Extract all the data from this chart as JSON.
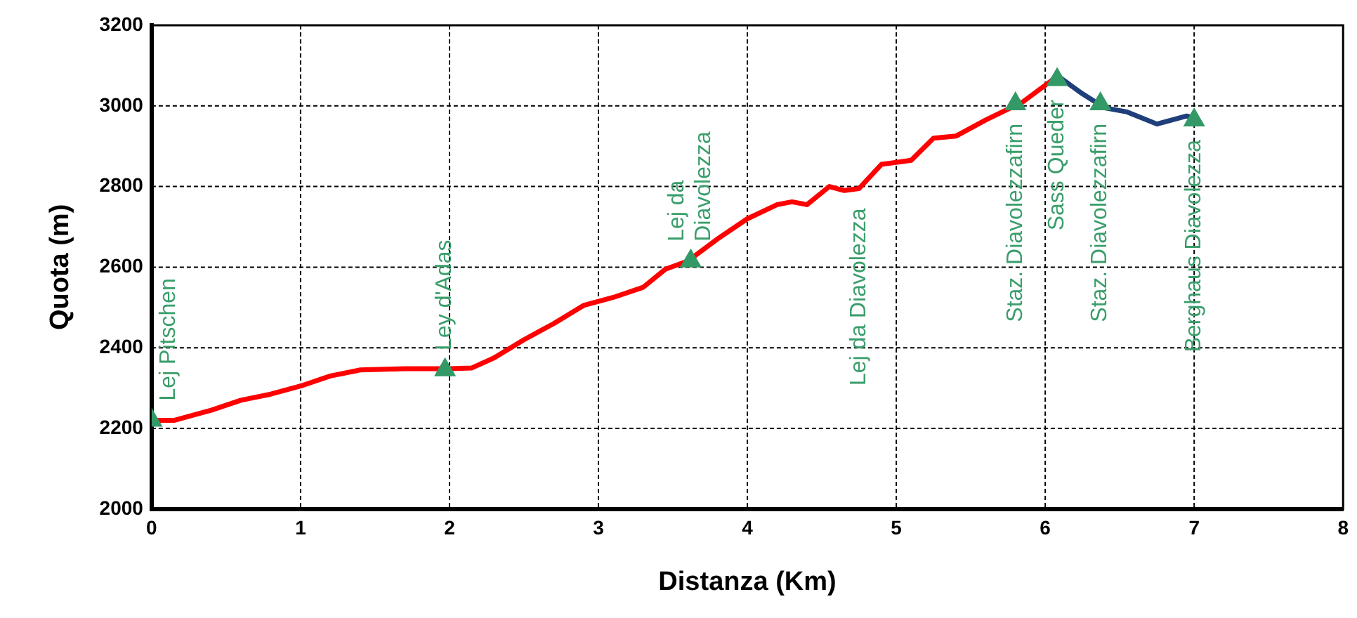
{
  "chart_data": {
    "type": "line",
    "xlabel": "Distanza (Km)",
    "ylabel": "Quota (m)",
    "xlim": [
      0,
      8
    ],
    "xticks": [
      0,
      1,
      2,
      3,
      4,
      5,
      6,
      7,
      8
    ],
    "ylim": [
      2000,
      3200
    ],
    "yticks": [
      2000,
      2200,
      2400,
      2600,
      2800,
      3000,
      3200
    ],
    "grid": true,
    "legend": false,
    "line_style": "solid",
    "marker": "none",
    "series": [
      {
        "color": "#ff0000",
        "x": [
          0,
          0.15,
          0.4,
          0.6,
          0.8,
          1.0,
          1.2,
          1.4,
          1.7,
          2.0,
          2.15,
          2.3,
          2.5,
          2.7,
          2.9,
          3.1,
          3.3,
          3.45,
          3.6,
          3.8,
          4.0,
          4.2,
          4.3,
          4.4,
          4.55,
          4.65,
          4.75,
          4.9,
          5.1,
          5.25,
          5.4,
          5.6,
          5.85,
          6.05
        ],
        "values": [
          2220,
          2220,
          2245,
          2270,
          2285,
          2305,
          2330,
          2345,
          2348,
          2348,
          2350,
          2375,
          2420,
          2460,
          2505,
          2525,
          2550,
          2595,
          2615,
          2670,
          2720,
          2755,
          2762,
          2755,
          2800,
          2790,
          2795,
          2855,
          2865,
          2920,
          2925,
          2965,
          3010,
          3065
        ]
      },
      {
        "color": "#1f3f7a",
        "x": [
          6.05,
          6.1,
          6.25,
          6.4,
          6.55,
          6.75,
          6.95,
          7.0
        ],
        "values": [
          3065,
          3070,
          3030,
          2995,
          2985,
          2955,
          2975,
          2970
        ]
      },
      {
        "type": "scatter",
        "marker": "triangle",
        "color": "#339966",
        "x": [
          0,
          1.97,
          3.62,
          5.8,
          6.08,
          6.37,
          7.0
        ],
        "values": [
          2220,
          2345,
          2615,
          3005,
          3065,
          3005,
          2965
        ]
      }
    ],
    "annotations": [
      {
        "text": "Lej Pitschen",
        "x": 0,
        "y": 2220
      },
      {
        "text": "Ley d'Adas",
        "x": 1.97,
        "y": 2345
      },
      {
        "text": "Lej da\nDiavolezza",
        "x": 3.62,
        "y": 2615
      },
      {
        "text": "Lej da Diavolezza",
        "x": 4.75,
        "y": 2795
      },
      {
        "text": "Staz. Diavolezzafirn",
        "x": 5.8,
        "y": 3005
      },
      {
        "text": "Sass Queder",
        "x": 6.08,
        "y": 3065
      },
      {
        "text": "Staz. Diavolezzafirn",
        "x": 6.37,
        "y": 3005
      },
      {
        "text": "Berghaus Diavolezza",
        "x": 7.0,
        "y": 2965
      }
    ]
  }
}
